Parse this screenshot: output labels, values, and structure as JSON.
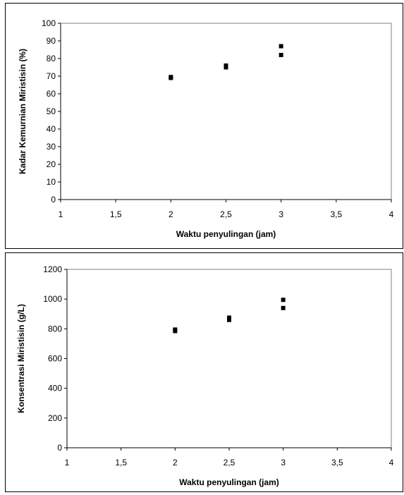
{
  "chart_data": [
    {
      "type": "scatter",
      "xlabel": "Waktu penyulingan (jam)",
      "ylabel": "Kadar Kemurnian Miristisin (%)",
      "xlim": [
        1,
        4
      ],
      "ylim": [
        0,
        100
      ],
      "x_ticks": [
        "1",
        "1,5",
        "2",
        "2,5",
        "3",
        "3,5",
        "4"
      ],
      "y_ticks": [
        "0",
        "10",
        "20",
        "30",
        "40",
        "50",
        "60",
        "70",
        "80",
        "90",
        "100"
      ],
      "grid": false,
      "series": [
        {
          "x": [
            2,
            2,
            2.5,
            2.5,
            3,
            3
          ],
          "y": [
            69.5,
            69,
            76,
            75,
            87,
            82
          ]
        }
      ]
    },
    {
      "type": "scatter",
      "xlabel": "Waktu penyulingan (jam)",
      "ylabel": "Konsentrasi Miristisin (g/L)",
      "xlim": [
        1,
        4
      ],
      "ylim": [
        0,
        1200
      ],
      "x_ticks": [
        "1",
        "1,5",
        "2",
        "2,5",
        "3",
        "3,5",
        "4"
      ],
      "y_ticks": [
        "0",
        "200",
        "400",
        "600",
        "800",
        "1000",
        "1200"
      ],
      "grid": false,
      "series": [
        {
          "x": [
            2,
            2,
            2.5,
            2.5,
            3,
            3
          ],
          "y": [
            795,
            785,
            875,
            860,
            995,
            940
          ]
        }
      ]
    }
  ],
  "colors": {
    "marker": "#000000",
    "axis": "#000000",
    "frame": "#808080",
    "plot_background": "#ffffff"
  }
}
